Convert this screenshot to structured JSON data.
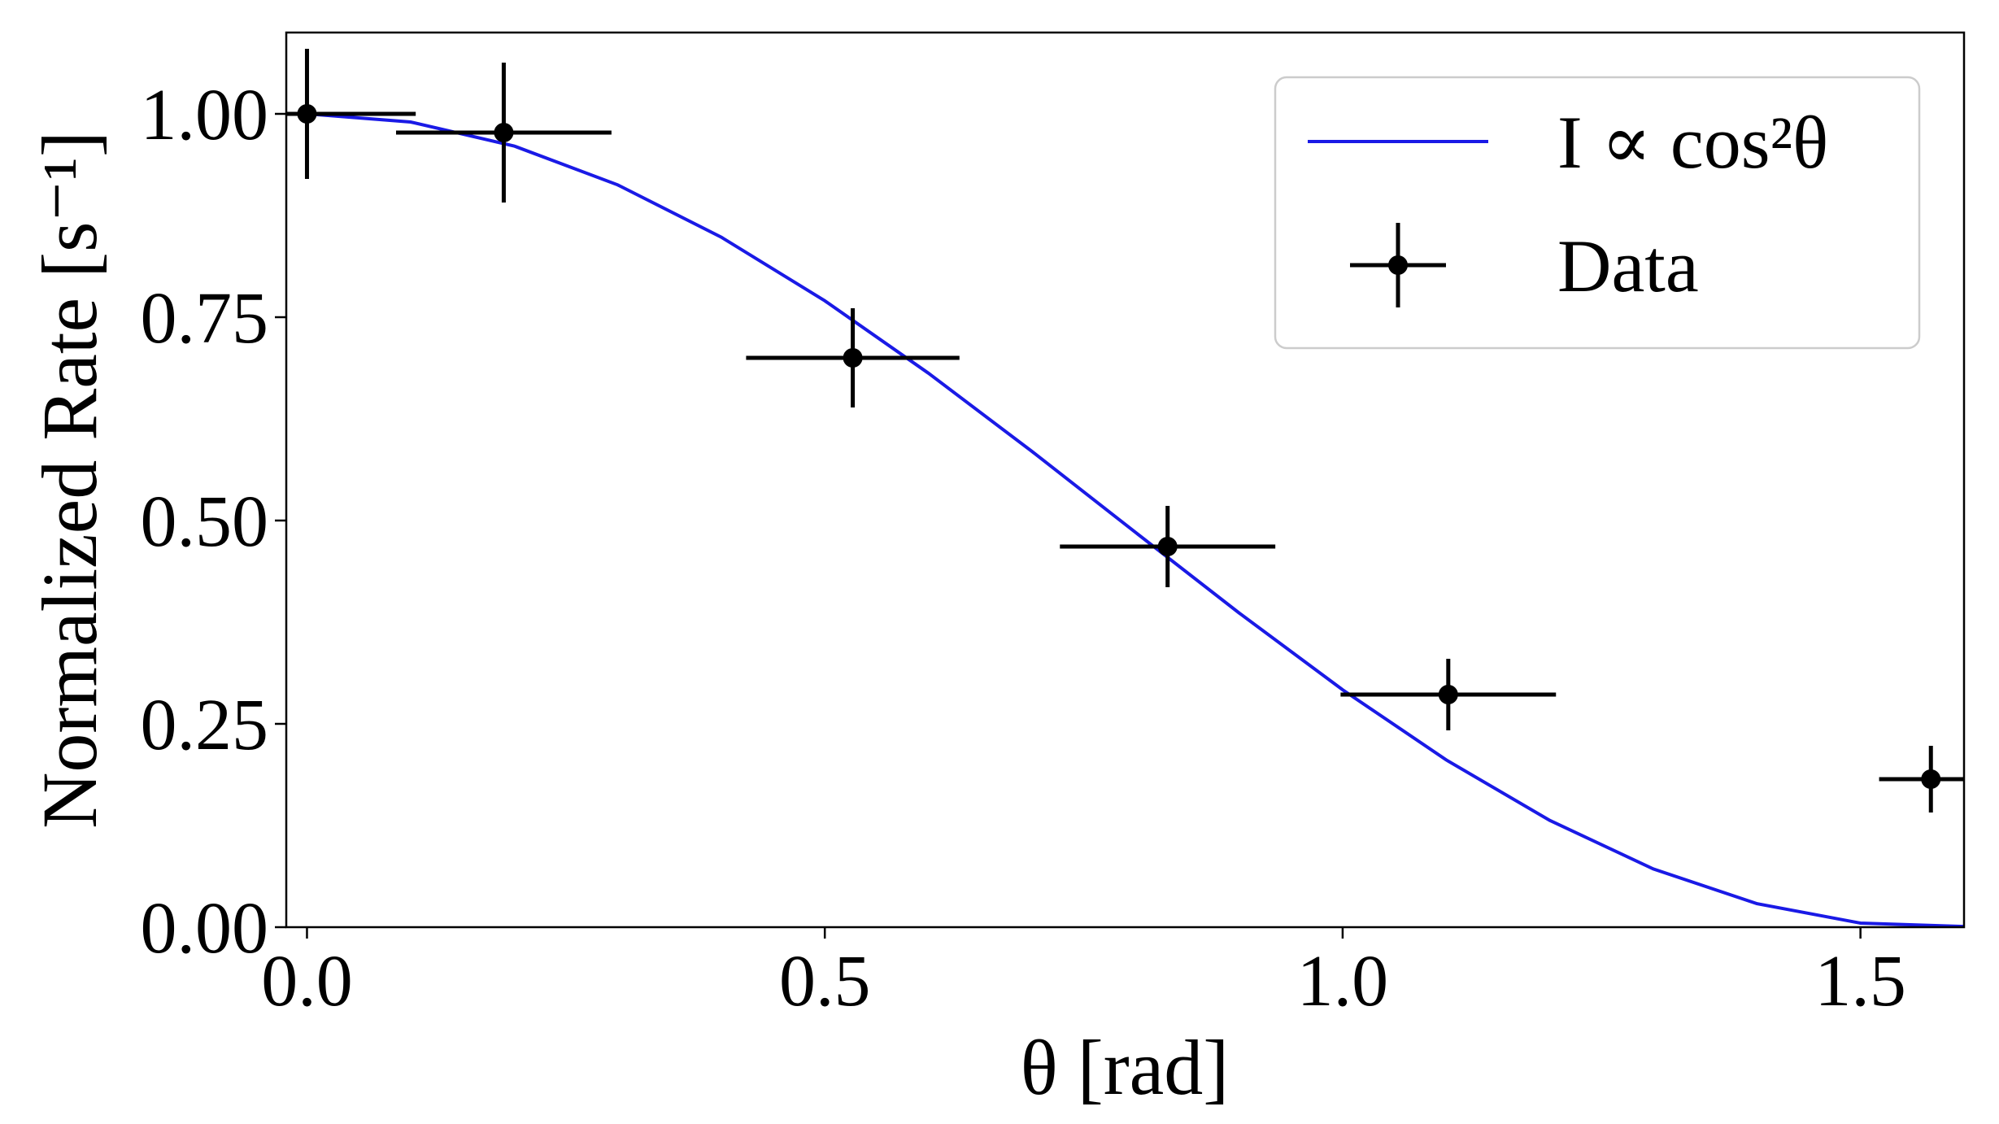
{
  "chart_data": {
    "type": "line",
    "x_label": "θ [rad]",
    "y_label": "Normalized Rate [s⁻¹]",
    "xlim": [
      -0.02,
      1.6
    ],
    "ylim": [
      0,
      1.1
    ],
    "xticks": [
      {
        "value": 0,
        "label": "0.0"
      },
      0.5,
      {
        "value": 1,
        "label": "1.0"
      },
      1.5
    ],
    "yticks": [
      {
        "value": 0,
        "label": "0.00"
      },
      {
        "value": 0.25,
        "label": "0.25"
      },
      {
        "value": 0.5,
        "label": "0.50"
      },
      {
        "value": 0.75,
        "label": "0.75"
      },
      {
        "value": 1,
        "label": "1.00"
      }
    ],
    "grid": false,
    "legend": "upper right",
    "series": [
      {
        "name": "I ∝ cos²θ",
        "type": "line",
        "color": "#1a1ae6",
        "x": [
          0,
          0.1,
          0.2,
          0.3,
          0.4,
          0.5,
          0.6,
          0.7,
          0.8,
          0.9,
          1.0,
          1.1,
          1.2,
          1.3,
          1.4,
          1.5,
          1.6
        ],
        "values": [
          1,
          0.99,
          0.9605,
          0.9127,
          0.8484,
          0.7702,
          0.6812,
          0.585,
          0.4854,
          0.3864,
          0.2919,
          0.2057,
          0.1313,
          0.0716,
          0.0289,
          0.005,
          0.0009
        ]
      },
      {
        "name": "Data",
        "type": "errorbar",
        "color": "#000000",
        "x": [
          0,
          0.19,
          0.527,
          0.831,
          1.102,
          1.568
        ],
        "values": [
          1.0,
          0.977,
          0.7,
          0.468,
          0.286,
          0.182
        ],
        "xerr": [
          0.105,
          0.104,
          0.103,
          0.104,
          0.104,
          0.05
        ],
        "yerr": [
          0.08,
          0.086,
          0.061,
          0.05,
          0.044,
          0.041
        ]
      }
    ]
  }
}
